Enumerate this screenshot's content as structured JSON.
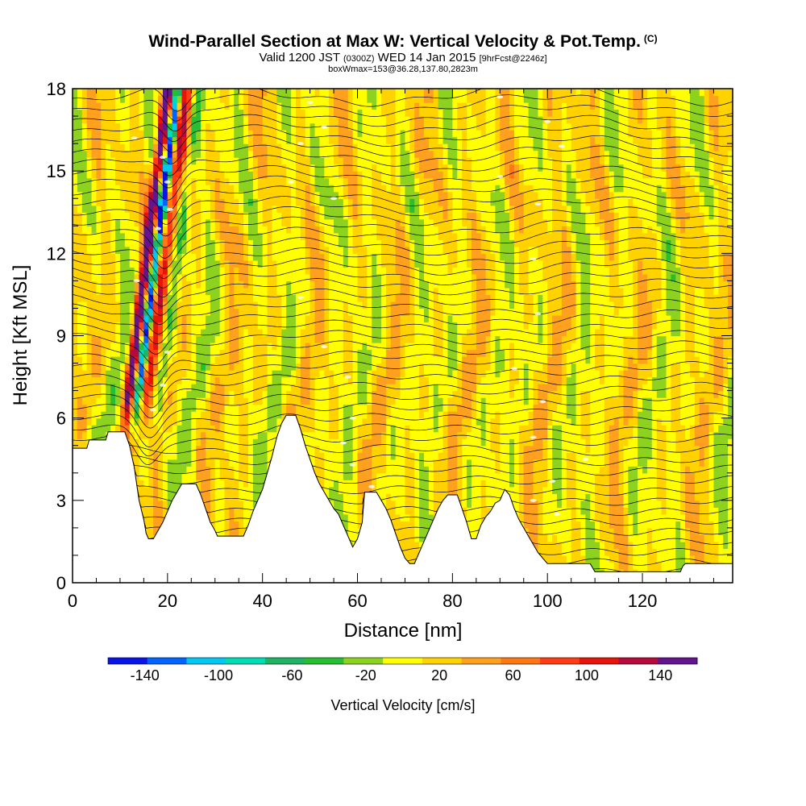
{
  "header": {
    "title": "Wind-Parallel Section at Max W: Vertical Velocity & Pot.Temp.",
    "title_mark": "(C)",
    "valid_main": "Valid 1200 JST",
    "valid_zulu": "(0300Z)",
    "valid_date": "WED 14 Jan 2015",
    "valid_fcst": "[9hrFcst@2246z]",
    "box_line": "boxWmax=153@36.28,137.80,2823m"
  },
  "chart_data": {
    "type": "heatmap",
    "xlabel": "Distance [nm]",
    "ylabel": "Height [Kft MSL]",
    "xlim": [
      0,
      139
    ],
    "ylim": [
      0,
      18
    ],
    "x_ticks": [
      0,
      20,
      40,
      60,
      80,
      100,
      120
    ],
    "y_ticks": [
      0,
      3,
      6,
      9,
      12,
      15,
      18
    ],
    "colorbar": {
      "label": "Vertical Velocity [cm/s]",
      "tick_labels": [
        "-140",
        "-100",
        "-60",
        "-20",
        "20",
        "60",
        "100",
        "140"
      ],
      "tick_values": [
        -140,
        -100,
        -60,
        -20,
        20,
        60,
        100,
        140
      ],
      "range": [
        -160,
        160
      ],
      "colors": [
        "#0a14e6",
        "#0064ff",
        "#00c8f0",
        "#00dcb4",
        "#1eb464",
        "#28be32",
        "#8cd21e",
        "#ffff00",
        "#ffd200",
        "#ffa01e",
        "#ff7814",
        "#ff3c14",
        "#e6140a",
        "#b40a3c",
        "#64148c"
      ]
    },
    "terrain_kft": [
      [
        0,
        4.9
      ],
      [
        3,
        4.9
      ],
      [
        3.5,
        5.2
      ],
      [
        7,
        5.2
      ],
      [
        7.5,
        5.5
      ],
      [
        11,
        5.5
      ],
      [
        12,
        5.0
      ],
      [
        13,
        4.2
      ],
      [
        14,
        3.0
      ],
      [
        15,
        2.3
      ],
      [
        15.5,
        1.8
      ],
      [
        16,
        1.6
      ],
      [
        17,
        1.6
      ],
      [
        18,
        1.9
      ],
      [
        19,
        2.2
      ],
      [
        20,
        2.6
      ],
      [
        21,
        3.0
      ],
      [
        22,
        3.3
      ],
      [
        23,
        3.6
      ],
      [
        26,
        3.6
      ],
      [
        27,
        3.2
      ],
      [
        28,
        2.7
      ],
      [
        29,
        2.2
      ],
      [
        30,
        1.9
      ],
      [
        30.5,
        1.7
      ],
      [
        36,
        1.7
      ],
      [
        37,
        2.1
      ],
      [
        38,
        2.6
      ],
      [
        39,
        3.0
      ],
      [
        40,
        3.4
      ],
      [
        41,
        4.0
      ],
      [
        42,
        4.6
      ],
      [
        43,
        5.3
      ],
      [
        44,
        5.8
      ],
      [
        45,
        6.1
      ],
      [
        47,
        6.1
      ],
      [
        48,
        5.6
      ],
      [
        49,
        5.0
      ],
      [
        50,
        4.5
      ],
      [
        51,
        4.0
      ],
      [
        52,
        3.6
      ],
      [
        53,
        3.3
      ],
      [
        54,
        3.0
      ],
      [
        55,
        2.7
      ],
      [
        56,
        2.5
      ],
      [
        57,
        2.1
      ],
      [
        58,
        1.7
      ],
      [
        59,
        1.3
      ],
      [
        60,
        1.6
      ],
      [
        61,
        2.2
      ],
      [
        61.5,
        3.3
      ],
      [
        64,
        3.3
      ],
      [
        65,
        3.0
      ],
      [
        66,
        2.7
      ],
      [
        67,
        2.3
      ],
      [
        68,
        1.8
      ],
      [
        69,
        1.3
      ],
      [
        70,
        0.9
      ],
      [
        71,
        0.7
      ],
      [
        72,
        0.7
      ],
      [
        73,
        1.1
      ],
      [
        74,
        1.5
      ],
      [
        75,
        1.9
      ],
      [
        76,
        2.3
      ],
      [
        77,
        2.7
      ],
      [
        78,
        3.0
      ],
      [
        79,
        3.2
      ],
      [
        81,
        3.2
      ],
      [
        82,
        2.7
      ],
      [
        83,
        2.2
      ],
      [
        84,
        1.6
      ],
      [
        85,
        1.6
      ],
      [
        86,
        2.1
      ],
      [
        87,
        2.4
      ],
      [
        88,
        2.6
      ],
      [
        89,
        2.9
      ],
      [
        90,
        3.0
      ],
      [
        91,
        3.4
      ],
      [
        92,
        3.2
      ],
      [
        93,
        2.7
      ],
      [
        94,
        2.3
      ],
      [
        95,
        2.0
      ],
      [
        96,
        1.7
      ],
      [
        97,
        1.4
      ],
      [
        98,
        1.1
      ],
      [
        99,
        0.9
      ],
      [
        100,
        0.7
      ],
      [
        109,
        0.7
      ],
      [
        110,
        0.4
      ],
      [
        128,
        0.4
      ],
      [
        128.5,
        0.6
      ],
      [
        129,
        0.7
      ],
      [
        139,
        0.7
      ]
    ],
    "wmax_cm_s": 153,
    "wmax_location": "36.28,137.80,2823m",
    "isentrope_labels_visible": true
  }
}
